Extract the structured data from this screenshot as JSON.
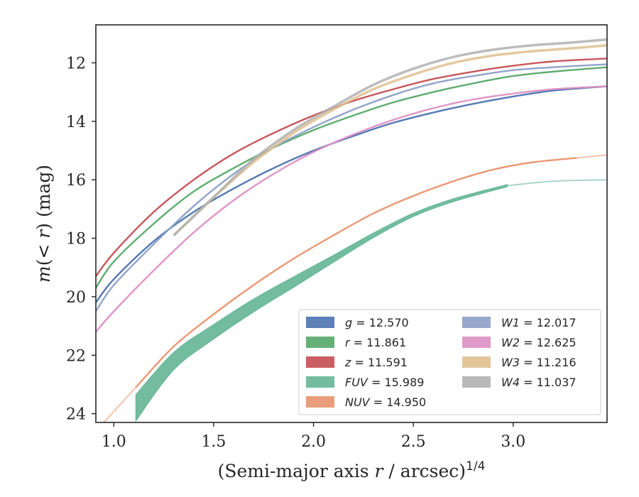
{
  "chart_data": {
    "type": "line",
    "xlabel": "(Semi-major axis r / arcsec)^1/4",
    "ylabel": "m(< r) (mag)",
    "xlim": [
      0.91,
      3.47
    ],
    "ylim": [
      24.3,
      10.7
    ],
    "y_inverted": true,
    "xticks": [
      1.0,
      1.5,
      2.0,
      2.5,
      3.0
    ],
    "xtick_labels": [
      "1.0",
      "1.5",
      "2.0",
      "2.5",
      "3.0"
    ],
    "yticks": [
      12,
      14,
      16,
      18,
      20,
      22,
      24
    ],
    "ytick_labels": [
      "12",
      "14",
      "16",
      "18",
      "20",
      "22",
      "24"
    ],
    "grid": false,
    "legend_position": "lower-right",
    "series": [
      {
        "name": "g",
        "label_value": "12.570",
        "color": "#4c72b0",
        "x": [
          0.91,
          1.0,
          1.2,
          1.4,
          1.6,
          1.8,
          2.0,
          2.2,
          2.4,
          2.6,
          2.8,
          3.0,
          3.2,
          3.47
        ],
        "y": [
          20.2,
          19.4,
          18.1,
          17.1,
          16.3,
          15.6,
          15.0,
          14.5,
          14.05,
          13.7,
          13.4,
          13.15,
          12.95,
          12.8
        ]
      },
      {
        "name": "r",
        "label_value": "11.861",
        "color": "#55a868",
        "x": [
          0.91,
          1.0,
          1.2,
          1.4,
          1.6,
          1.8,
          2.0,
          2.2,
          2.4,
          2.6,
          2.8,
          3.0,
          3.2,
          3.47
        ],
        "y": [
          19.7,
          18.8,
          17.5,
          16.4,
          15.6,
          14.9,
          14.3,
          13.8,
          13.35,
          13.0,
          12.7,
          12.45,
          12.3,
          12.15
        ]
      },
      {
        "name": "z",
        "label_value": "11.591",
        "color": "#c44e52",
        "x": [
          0.91,
          1.0,
          1.2,
          1.4,
          1.6,
          1.8,
          2.0,
          2.2,
          2.4,
          2.6,
          2.8,
          3.0,
          3.2,
          3.47
        ],
        "y": [
          19.3,
          18.5,
          17.1,
          16.0,
          15.1,
          14.4,
          13.8,
          13.3,
          12.9,
          12.55,
          12.3,
          12.1,
          11.95,
          11.85
        ]
      },
      {
        "name": "FUV",
        "label_value": "15.989",
        "color": "#64b596",
        "band": true,
        "x": [
          1.11,
          1.3,
          1.5,
          1.7,
          1.9,
          2.1,
          2.3,
          2.5,
          2.7,
          2.97
        ],
        "y": [
          23.8,
          22.2,
          21.2,
          20.3,
          19.5,
          18.7,
          17.9,
          17.2,
          16.7,
          16.2
        ],
        "halfwidth": [
          0.45,
          0.3,
          0.25,
          0.22,
          0.18,
          0.12,
          0.08,
          0.06,
          0.05,
          0.04
        ],
        "ext_x": [
          2.97,
          3.2,
          3.47
        ],
        "ext_y": [
          16.2,
          16.05,
          16.0
        ]
      },
      {
        "name": "NUV",
        "label_value": "14.950",
        "color": "#e8926e",
        "x": [
          1.11,
          1.3,
          1.5,
          1.7,
          1.9,
          2.1,
          2.3,
          2.5,
          2.7,
          2.9,
          3.1,
          3.32
        ],
        "y": [
          23.1,
          21.7,
          20.6,
          19.6,
          18.7,
          17.9,
          17.15,
          16.55,
          16.05,
          15.65,
          15.4,
          15.25
        ],
        "ext_x": [
          0.95,
          1.11
        ],
        "ext_y": [
          24.3,
          23.1
        ],
        "ext2_x": [
          3.32,
          3.47
        ],
        "ext2_y": [
          15.25,
          15.15
        ]
      },
      {
        "name": "W1",
        "label_value": "12.017",
        "color": "#8c9fc6",
        "x": [
          0.91,
          1.0,
          1.2,
          1.4,
          1.6,
          1.8,
          2.0,
          2.2,
          2.4,
          2.6,
          2.8,
          3.0,
          3.2,
          3.47
        ],
        "y": [
          20.5,
          19.6,
          18.2,
          16.9,
          15.8,
          14.9,
          14.2,
          13.6,
          13.1,
          12.7,
          12.45,
          12.25,
          12.15,
          12.05
        ]
      },
      {
        "name": "W2",
        "label_value": "12.625",
        "color": "#dd8fc3",
        "x": [
          0.91,
          1.0,
          1.2,
          1.4,
          1.6,
          1.8,
          2.0,
          2.2,
          2.4,
          2.6,
          2.8,
          3.0,
          3.2,
          3.47
        ],
        "y": [
          21.2,
          20.5,
          19.1,
          17.8,
          16.7,
          15.8,
          15.05,
          14.45,
          13.95,
          13.55,
          13.25,
          13.05,
          12.9,
          12.8
        ]
      },
      {
        "name": "W3",
        "label_value": "11.216",
        "color": "#dfc08f",
        "x": [
          1.3,
          1.5,
          1.7,
          1.9,
          2.1,
          2.3,
          2.5,
          2.7,
          2.9,
          3.1,
          3.3,
          3.47
        ],
        "y": [
          17.9,
          16.6,
          15.4,
          14.4,
          13.6,
          12.9,
          12.4,
          12.0,
          11.75,
          11.6,
          11.5,
          11.4
        ]
      },
      {
        "name": "W4",
        "label_value": "11.037",
        "color": "#b0b0b0",
        "x": [
          1.3,
          1.5,
          1.7,
          1.9,
          2.1,
          2.3,
          2.5,
          2.7,
          2.9,
          3.1,
          3.3,
          3.47
        ],
        "y": [
          17.9,
          16.6,
          15.3,
          14.3,
          13.5,
          12.75,
          12.2,
          11.8,
          11.55,
          11.4,
          11.3,
          11.2
        ]
      }
    ]
  }
}
